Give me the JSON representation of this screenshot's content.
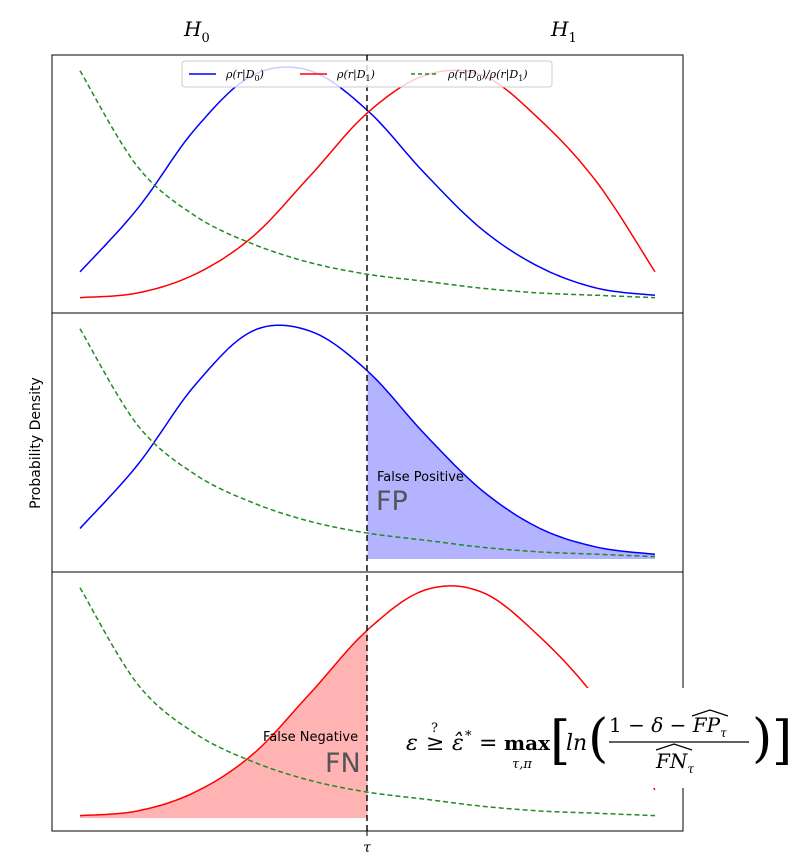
{
  "figure": {
    "hypothesis_left": "H0",
    "hypothesis_right": "H1",
    "ylabel": "Probability Density",
    "xlabel": "τ",
    "fp_caption": "False Positive",
    "fp_label": "FP",
    "fn_caption": "False Negative",
    "fn_label": "FN",
    "formula": "ε ≥? ε̂* = max_{τ,π} [ ln ( (1 − δ − FP̂_τ) / FN̂_τ ) ]"
  },
  "colors": {
    "h0_curve": "#0000ff",
    "h1_curve": "#ff0000",
    "ratio_curve": "#228b22",
    "fp_fill": "#b3b3ff",
    "fn_fill": "#ffb3b3",
    "threshold": "#000000"
  },
  "chart_data": [
    {
      "type": "line",
      "panel": "top",
      "legend_position": "top-center",
      "threshold_x": 0.5,
      "x_range": [
        0,
        1
      ],
      "series": [
        {
          "name": "ρ(r|D0)",
          "style": "solid",
          "color": "#0000ff",
          "x": [
            0,
            0.1,
            0.2,
            0.3,
            0.4,
            0.5,
            0.6,
            0.7,
            0.8,
            0.9,
            1.0
          ],
          "y": [
            0.12,
            0.39,
            0.73,
            0.96,
            0.98,
            0.81,
            0.54,
            0.3,
            0.14,
            0.05,
            0.02
          ]
        },
        {
          "name": "ρ(r|D1)",
          "style": "solid",
          "color": "#ff0000",
          "x": [
            0,
            0.1,
            0.2,
            0.3,
            0.4,
            0.5,
            0.6,
            0.7,
            0.8,
            0.9,
            1.0
          ],
          "y": [
            0.01,
            0.03,
            0.11,
            0.27,
            0.53,
            0.8,
            0.96,
            0.96,
            0.77,
            0.5,
            0.12
          ]
        },
        {
          "name": "ρ(r|D0)/ρ(r|D1)",
          "style": "dashed",
          "color": "#228b22",
          "x": [
            0,
            0.1,
            0.2,
            0.3,
            0.4,
            0.5,
            0.6,
            0.7,
            0.8,
            0.9,
            1.0
          ],
          "y": [
            0.98,
            0.57,
            0.36,
            0.24,
            0.16,
            0.11,
            0.08,
            0.05,
            0.03,
            0.02,
            0.01
          ]
        }
      ]
    },
    {
      "type": "area",
      "panel": "middle",
      "threshold_x": 0.5,
      "x_range": [
        0,
        1
      ],
      "shaded_region": {
        "series": "ρ(r|D0)",
        "from": 0.5,
        "to": 1.0,
        "label": "FP"
      },
      "series": [
        {
          "name": "ρ(r|D0)",
          "style": "solid",
          "color": "#0000ff",
          "x": [
            0,
            0.1,
            0.2,
            0.3,
            0.4,
            0.5,
            0.6,
            0.7,
            0.8,
            0.9,
            1.0
          ],
          "y": [
            0.13,
            0.4,
            0.74,
            0.97,
            0.97,
            0.8,
            0.53,
            0.29,
            0.13,
            0.05,
            0.02
          ]
        },
        {
          "name": "ρ(r|D0)/ρ(r|D1)",
          "style": "dashed",
          "color": "#228b22",
          "x": [
            0,
            0.1,
            0.2,
            0.3,
            0.4,
            0.5,
            0.6,
            0.7,
            0.8,
            0.9,
            1.0
          ],
          "y": [
            0.98,
            0.57,
            0.36,
            0.24,
            0.16,
            0.11,
            0.08,
            0.05,
            0.03,
            0.02,
            0.01
          ]
        }
      ]
    },
    {
      "type": "area",
      "panel": "bottom",
      "threshold_x": 0.5,
      "x_range": [
        0,
        1
      ],
      "shaded_region": {
        "series": "ρ(r|D1)",
        "from": 0.0,
        "to": 0.5,
        "label": "FN"
      },
      "series": [
        {
          "name": "ρ(r|D1)",
          "style": "solid",
          "color": "#ff0000",
          "x": [
            0,
            0.1,
            0.2,
            0.3,
            0.4,
            0.5,
            0.6,
            0.7,
            0.8,
            0.9,
            1.0
          ],
          "y": [
            0.01,
            0.03,
            0.11,
            0.27,
            0.53,
            0.8,
            0.97,
            0.96,
            0.77,
            0.5,
            0.12
          ]
        },
        {
          "name": "ρ(r|D0)/ρ(r|D1)",
          "style": "dashed",
          "color": "#228b22",
          "x": [
            0,
            0.1,
            0.2,
            0.3,
            0.4,
            0.5,
            0.6,
            0.7,
            0.8,
            0.9,
            1.0
          ],
          "y": [
            0.98,
            0.57,
            0.36,
            0.24,
            0.16,
            0.11,
            0.08,
            0.05,
            0.03,
            0.02,
            0.01
          ]
        }
      ]
    }
  ]
}
